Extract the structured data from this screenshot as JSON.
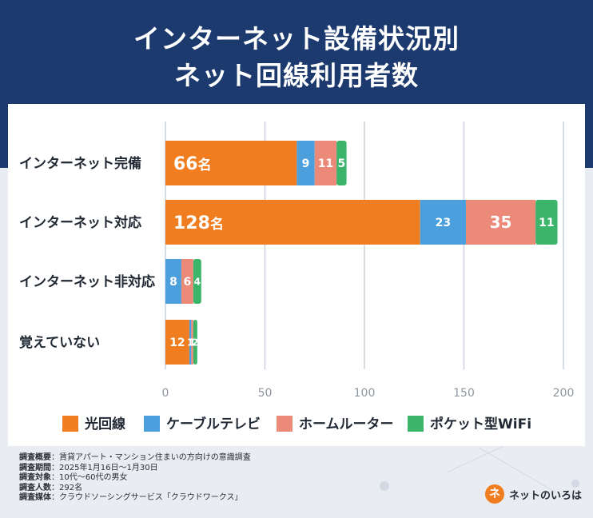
{
  "header": {
    "title_line1": "インターネット設備状況別",
    "title_line2": "ネット回線利用者数"
  },
  "chart_data": {
    "type": "bar",
    "orientation": "horizontal",
    "stacked": true,
    "categories": [
      "インターネット完備",
      "インターネット対応",
      "インターネット非対応",
      "覚えていない"
    ],
    "series": [
      {
        "name": "光回線",
        "color": "#f07d1f",
        "values": [
          66,
          128,
          0,
          12
        ],
        "labels": [
          "66名",
          "128名",
          "",
          "12"
        ]
      },
      {
        "name": "ケーブルテレビ",
        "color": "#4a9fdc",
        "values": [
          9,
          23,
          8,
          1
        ],
        "labels": [
          "9",
          "23",
          "8",
          "1"
        ]
      },
      {
        "name": "ホームルーター",
        "color": "#ec8a7a",
        "values": [
          11,
          35,
          6,
          1
        ],
        "labels": [
          "11",
          "35",
          "6",
          "1"
        ]
      },
      {
        "name": "ポケット型WiFi",
        "color": "#3bb56a",
        "values": [
          5,
          11,
          4,
          2
        ],
        "labels": [
          "5",
          "11",
          "4",
          "2"
        ]
      }
    ],
    "xlim": [
      0,
      200
    ],
    "xticks": [
      "0",
      "50",
      "100",
      "150",
      "200"
    ],
    "grid": true,
    "legend": "bottom"
  },
  "notes": [
    {
      "key": "調査概要",
      "value": "賃貸アパート・マンション住まいの方向けの意識調査"
    },
    {
      "key": "調査期間",
      "value": "2025年1月16日〜1月30日"
    },
    {
      "key": "調査対象",
      "value": "10代〜60代の男女"
    },
    {
      "key": "調査人数",
      "value": "292名"
    },
    {
      "key": "調査媒体",
      "value": "クラウドソーシングサービス「クラウドワークス」"
    }
  ],
  "logo": {
    "mark": "ネ",
    "text": "ネットのいろは"
  }
}
